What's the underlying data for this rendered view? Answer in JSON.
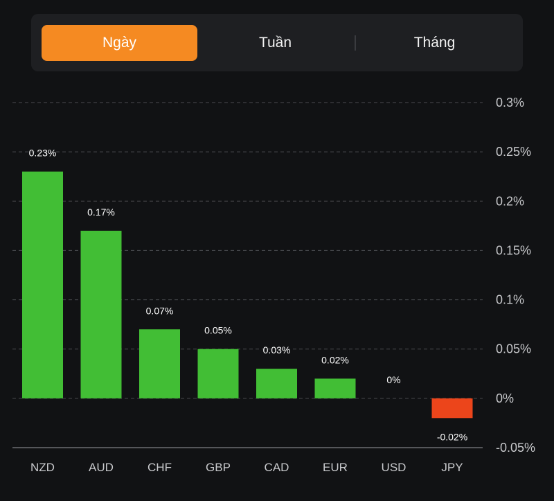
{
  "tabs": [
    {
      "label": "Ngày",
      "active": true
    },
    {
      "label": "Tuần",
      "active": false
    },
    {
      "label": "Tháng",
      "active": false
    }
  ],
  "colors": {
    "positive": "#42be35",
    "negative": "#ec451b",
    "accent": "#f58a22",
    "grid": "#4a4b4f",
    "axis_text": "#c8c9cc"
  },
  "chart_data": {
    "type": "bar",
    "title": "",
    "xlabel": "",
    "ylabel": "",
    "categories": [
      "NZD",
      "AUD",
      "CHF",
      "GBP",
      "CAD",
      "EUR",
      "USD",
      "JPY"
    ],
    "values": [
      0.23,
      0.17,
      0.07,
      0.05,
      0.03,
      0.02,
      0,
      -0.02
    ],
    "data_labels": [
      "0.23%",
      "0.17%",
      "0.07%",
      "0.05%",
      "0.03%",
      "0.02%",
      "0%",
      "-0.02%"
    ],
    "ylim": [
      -0.05,
      0.3
    ],
    "yticks": [
      0.3,
      0.25,
      0.2,
      0.15,
      0.1,
      0.05,
      0,
      -0.05
    ],
    "ytick_labels": [
      "0.3%",
      "0.25%",
      "0.2%",
      "0.15%",
      "0.1%",
      "0.05%",
      "0%",
      "-0.05%"
    ],
    "y_axis_position": "right",
    "grid": true
  }
}
